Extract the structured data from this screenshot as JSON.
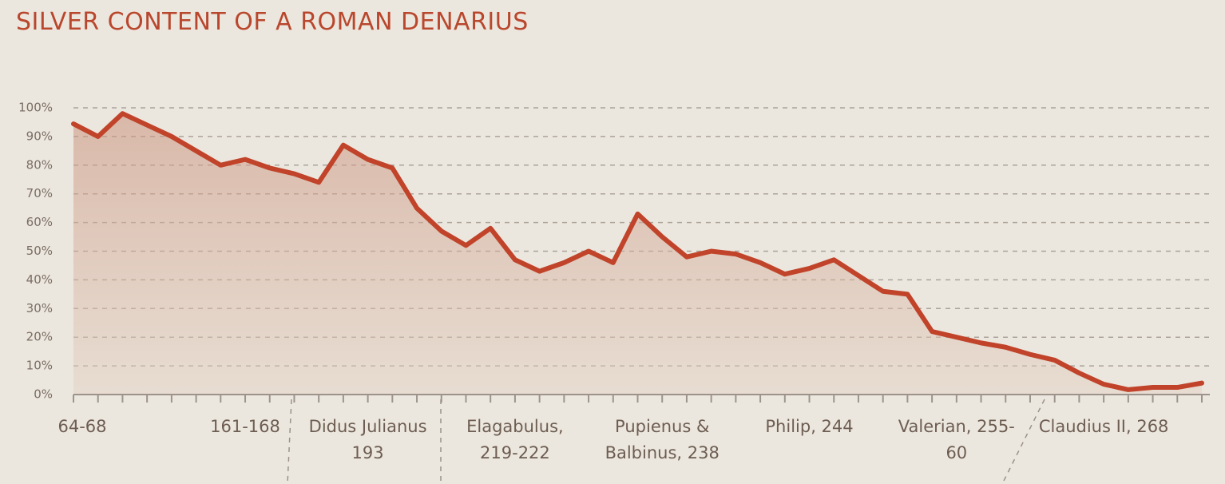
{
  "chart_data": {
    "type": "area",
    "title": "SILVER CONTENT OF A ROMAN DENARIUS",
    "categories": [
      "64-68",
      null,
      null,
      null,
      null,
      null,
      null,
      "161-168",
      null,
      null,
      null,
      null,
      "Didus Julianus 193",
      null,
      null,
      null,
      null,
      null,
      "Elagabulus, 219-222",
      null,
      null,
      null,
      null,
      null,
      "Pupienus & Balbinus, 238",
      null,
      null,
      null,
      null,
      null,
      "Philip, 244",
      null,
      null,
      null,
      null,
      null,
      "Valerian, 255-60",
      null,
      null,
      null,
      null,
      null,
      "Claudius II, 268",
      null,
      null,
      null,
      null
    ],
    "values": [
      94.4,
      90,
      98,
      94,
      90,
      85,
      80,
      82,
      79,
      77,
      74,
      87,
      82,
      79,
      65,
      57,
      52,
      58,
      47,
      43,
      46,
      50,
      46,
      63,
      55,
      48,
      50,
      49,
      46,
      42,
      44,
      47,
      41.5,
      36,
      35,
      22,
      20,
      18,
      16.5,
      14,
      12,
      7.5,
      3.6,
      1.7,
      2.5,
      2.5,
      4
    ],
    "color": "#c0432a",
    "ylim": [
      0,
      100
    ],
    "yticks": [
      {
        "value": 0,
        "label": "0%"
      },
      {
        "value": 10,
        "label": "10%"
      },
      {
        "value": 20,
        "label": "20%"
      },
      {
        "value": 30,
        "label": "30%"
      },
      {
        "value": 40,
        "label": "40%"
      },
      {
        "value": 50,
        "label": "50%"
      },
      {
        "value": 60,
        "label": "60%"
      },
      {
        "value": 70,
        "label": "70%"
      },
      {
        "value": 80,
        "label": "80%"
      },
      {
        "value": 90,
        "label": "90%"
      },
      {
        "value": 100,
        "label": "100%"
      }
    ],
    "grid": true
  }
}
